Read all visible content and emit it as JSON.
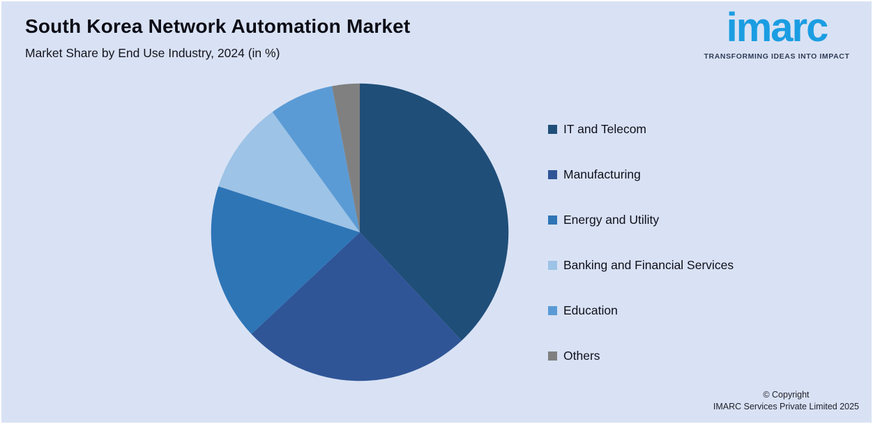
{
  "header": {
    "title": "South Korea Network Automation Market",
    "subtitle": "Market Share by End Use Industry, 2024 (in %)"
  },
  "logo": {
    "wordmark": "imarc",
    "tagline": "TRANSFORMING IDEAS INTO IMPACT",
    "brand_blue": "#1b9de2",
    "tagline_color": "#2f3c57"
  },
  "chart_data": {
    "type": "pie",
    "title": "South Korea Network Automation Market",
    "subtitle": "Market Share by End Use Industry, 2024 (in %)",
    "unit": "%",
    "categories": [
      "IT and Telecom",
      "Manufacturing",
      "Energy and Utility",
      "Banking and Financial Services",
      "Education",
      "Others"
    ],
    "values": [
      38,
      25,
      17,
      10,
      7,
      3
    ],
    "colors": [
      "#1f4e79",
      "#2f5597",
      "#2e75b6",
      "#9dc3e6",
      "#5b9bd5",
      "#808080"
    ],
    "legend_position": "right",
    "start_angle": "top",
    "direction": "clockwise",
    "data_labels": "none"
  },
  "footer": {
    "line1": "© Copyright",
    "line2": "IMARC Services Private Limited 2025"
  },
  "colors": {
    "background": "#d9e2f4"
  }
}
